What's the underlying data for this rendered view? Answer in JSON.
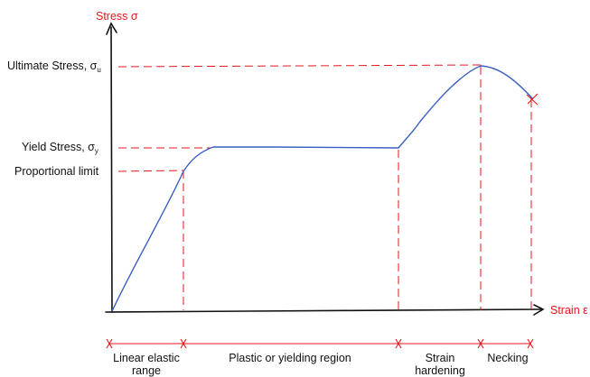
{
  "axes": {
    "y_label": "Stress σ",
    "x_label": "Strain ε"
  },
  "levels": {
    "ultimate": {
      "name": "Ultimate Stress, σ",
      "sub": "u"
    },
    "yield": {
      "name": "Yield Stress, σ",
      "sub": "y"
    },
    "proportional": "Proportional limit"
  },
  "regions": {
    "linear_1": "Linear elastic",
    "linear_2": "range",
    "plastic": "Plastic or yielding region",
    "hardening_1": "Strain",
    "hardening_2": "hardening",
    "necking": "Necking"
  },
  "colors": {
    "curve": "#3a5fc0",
    "guide": "#e8161b",
    "axis": "#111111"
  }
}
